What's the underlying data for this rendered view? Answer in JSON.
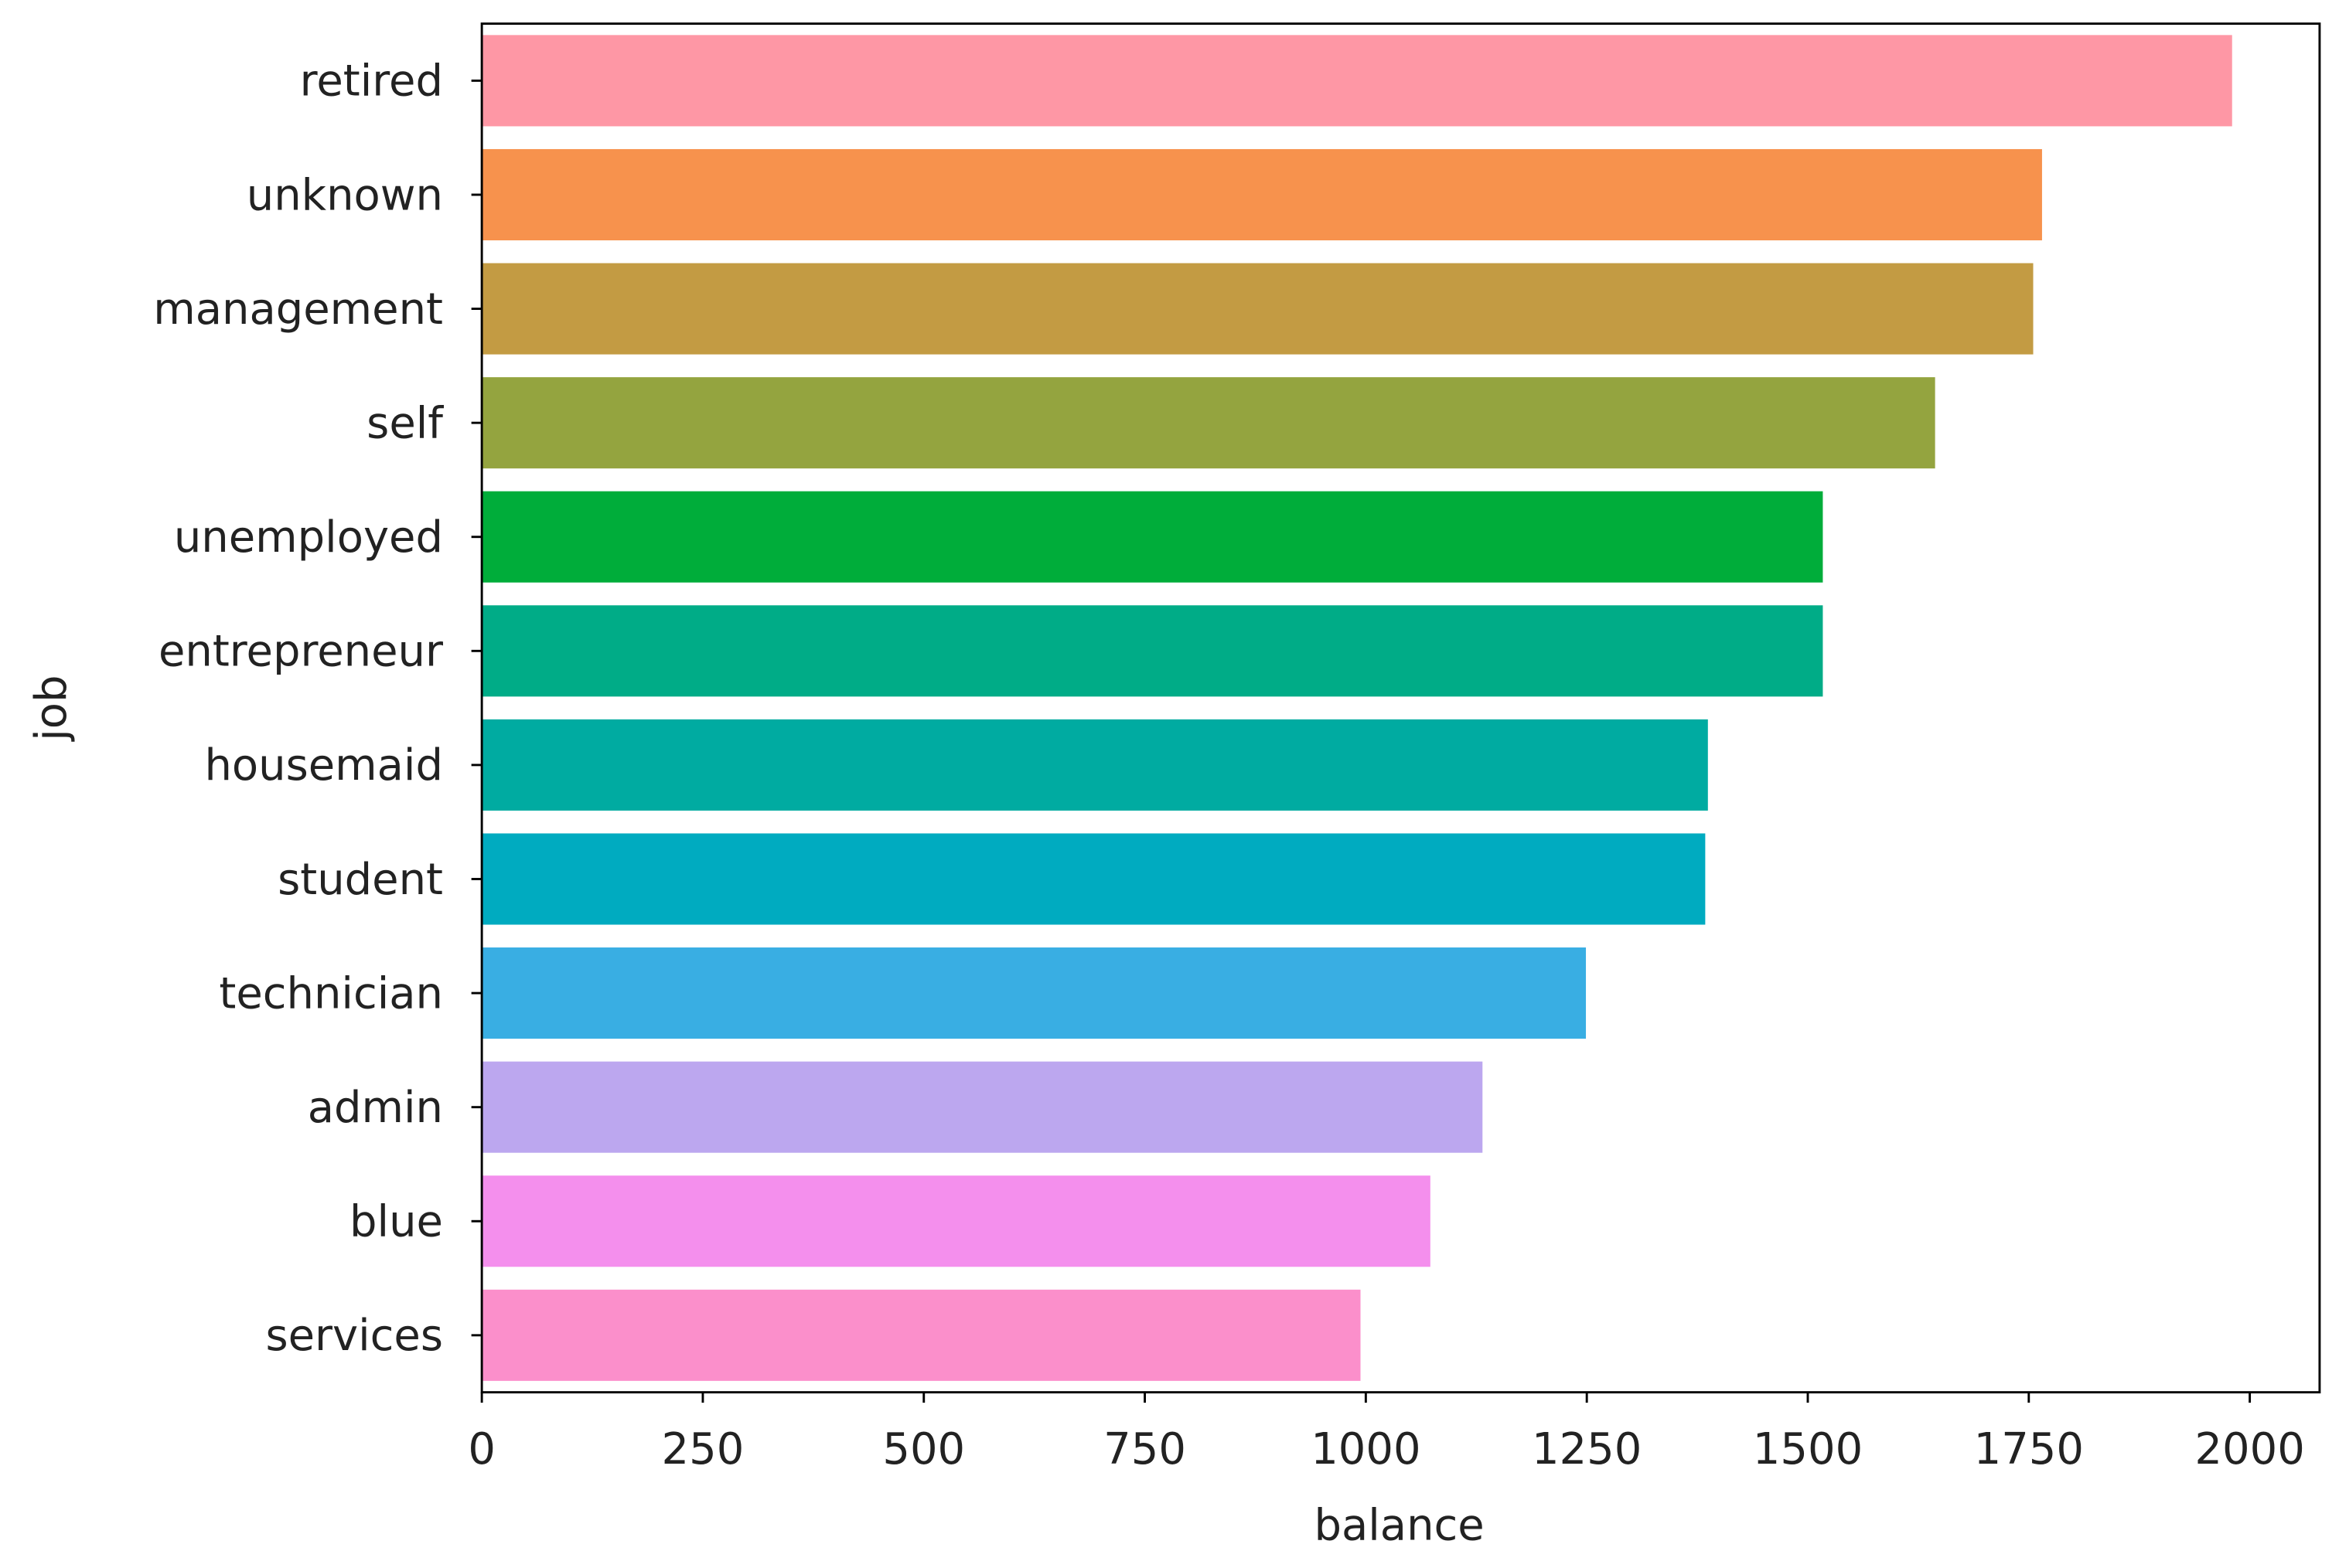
{
  "chart_data": {
    "type": "barh",
    "xlabel": "balance",
    "ylabel": "job",
    "categories": [
      "retired",
      "unknown",
      "management",
      "self",
      "unemployed",
      "entrepreneur",
      "housemaid",
      "student",
      "technician",
      "admin",
      "blue",
      "services"
    ],
    "values": [
      1980,
      1765,
      1755,
      1644,
      1517,
      1517,
      1387,
      1384,
      1249,
      1132,
      1073,
      994
    ],
    "colors": [
      "#fe97a5",
      "#f7924d",
      "#c39b43",
      "#94a43f",
      "#00ad3a",
      "#00ac87",
      "#00aba1",
      "#00abc0",
      "#39aee3",
      "#bca7ef",
      "#f48fed",
      "#fb8fcb"
    ],
    "xlim": [
      0,
      2079
    ],
    "xticks": [
      0,
      250,
      500,
      750,
      1000,
      1250,
      1500,
      1750,
      2000
    ]
  }
}
